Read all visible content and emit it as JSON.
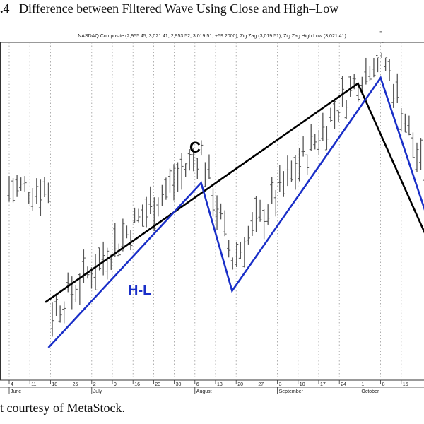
{
  "figure": {
    "number": ".4",
    "title": "Difference between Filtered Wave Using Close and High–Low",
    "header": "NASDAQ Composite (2,955.45, 3,021.41, 2,953.52, 3,019.51, +59.2000), Zig Zag (3,019.51), Zig Zag High Low (3,021.41)",
    "credit": "t courtesy of MetaStock."
  },
  "chart_data": {
    "type": "line",
    "title": "Difference between Filtered Wave Using Close and High–Low",
    "subtitle": "NASDAQ Composite (2,955.45, 3,021.41, 2,953.52, 3,019.51, +59.2000), Zig Zag (3,019.51), Zig Zag High Low (3,021.41)",
    "x_tick_labels": [
      "4",
      "11",
      "18",
      "25",
      "2",
      "9",
      "16",
      "23",
      "30",
      "6",
      "13",
      "20",
      "27",
      "3",
      "10",
      "17",
      "24",
      "1",
      "8",
      "15"
    ],
    "month_labels": [
      {
        "label": "June",
        "at_tick": 0
      },
      {
        "label": "July",
        "at_tick": 4
      },
      {
        "label": "August",
        "at_tick": 9
      },
      {
        "label": "September",
        "at_tick": 13
      },
      {
        "label": "October",
        "at_tick": 17
      }
    ],
    "vertical_grid": "dotted",
    "price_bars": {
      "color": "#555555",
      "note": "daily OHLC bars"
    },
    "series": [
      {
        "name": "C",
        "color": "#000000",
        "points": [
          [
            1.75,
            0.16
          ],
          [
            16.9,
            0.93
          ],
          [
            20.35,
            0.37
          ],
          [
            20.3,
            0.37
          ]
        ]
      },
      {
        "name": "H-L",
        "color": "#1a2fc8",
        "points": [
          [
            1.9,
            0.0
          ],
          [
            9.3,
            0.58
          ],
          [
            10.8,
            0.2
          ],
          [
            18.0,
            0.95
          ],
          [
            20.3,
            0.45
          ]
        ]
      }
    ],
    "ylim": [
      0,
      1
    ],
    "legend": "none",
    "wave_labels": [
      {
        "text": "C",
        "color": "#000000"
      },
      {
        "text": "H-L",
        "color": "#1a2fc8"
      }
    ]
  }
}
